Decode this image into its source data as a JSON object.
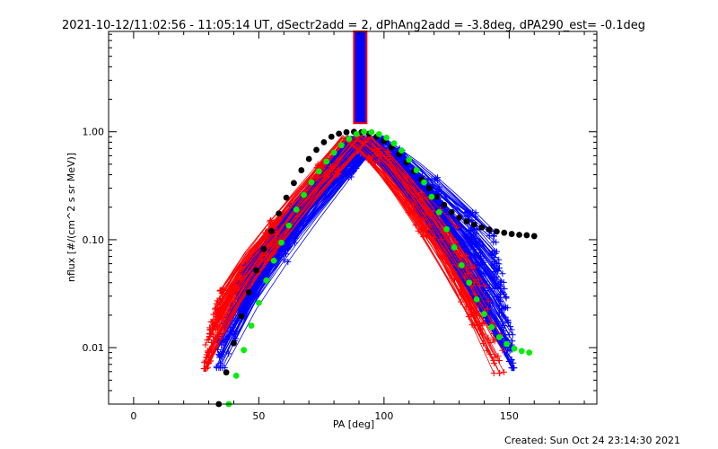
{
  "chart_data": {
    "type": "scatter",
    "title": "2021-10-12/11:02:56 - 11:05:14 UT, dSectr2add = 2, dPhAng2add = -3.8deg, dPA290_est= -0.1deg",
    "xlabel": "PA [deg]",
    "ylabel": "nflux [#/(cm^2 s sr MeV)]",
    "xlim": [
      -10,
      185
    ],
    "ylim": [
      0.003,
      8.5
    ],
    "yscale": "log",
    "xticks": [
      0,
      50,
      100,
      150
    ],
    "xtick_labels": [
      "0",
      "50",
      "100",
      "150"
    ],
    "yticks": [
      0.01,
      0.1,
      1.0
    ],
    "ytick_labels": [
      "0.01",
      "0.10",
      "1.00"
    ],
    "grid": false,
    "colors": {
      "red_traces": "#ff0000",
      "blue_traces": "#0000ff",
      "black_fit": "#000000",
      "green_fit": "#00ee00",
      "bar_fill": "#0000ff",
      "bar_edge": "#ff0000"
    },
    "series": [
      {
        "color": "#000000",
        "marker": "filled-circle",
        "x": [
          34,
          37,
          40,
          43,
          46,
          49,
          52,
          55,
          58,
          61,
          64,
          67,
          70,
          73,
          76,
          79,
          82,
          85,
          88,
          91,
          94,
          97,
          100,
          103,
          106,
          109,
          112,
          115,
          118,
          121,
          124,
          127,
          130,
          133,
          136,
          139,
          142,
          145,
          148,
          151,
          154,
          157,
          160
        ],
        "y": [
          0.003,
          0.0059,
          0.011,
          0.0195,
          0.0325,
          0.052,
          0.082,
          0.12,
          0.175,
          0.245,
          0.335,
          0.44,
          0.56,
          0.68,
          0.8,
          0.9,
          0.96,
          0.99,
          1.0,
          0.99,
          0.96,
          0.9,
          0.82,
          0.72,
          0.62,
          0.52,
          0.43,
          0.36,
          0.3,
          0.25,
          0.21,
          0.18,
          0.16,
          0.148,
          0.138,
          0.13,
          0.124,
          0.119,
          0.116,
          0.113,
          0.111,
          0.11,
          0.108
        ]
      },
      {
        "color": "#00ee00",
        "marker": "filled-circle",
        "x": [
          38,
          41,
          44,
          47,
          50,
          53,
          56,
          59,
          62,
          65,
          68,
          71,
          74,
          77,
          80,
          83,
          86,
          89,
          92,
          95,
          98,
          101,
          104,
          107,
          110,
          113,
          116,
          119,
          122,
          125,
          128,
          131,
          134,
          137,
          140,
          143,
          146,
          149,
          152,
          155,
          158
        ],
        "y": [
          0.003,
          0.0055,
          0.0095,
          0.016,
          0.026,
          0.042,
          0.064,
          0.094,
          0.135,
          0.19,
          0.26,
          0.34,
          0.43,
          0.53,
          0.64,
          0.75,
          0.86,
          0.95,
          1.0,
          0.99,
          0.95,
          0.88,
          0.78,
          0.67,
          0.55,
          0.44,
          0.34,
          0.25,
          0.18,
          0.125,
          0.085,
          0.058,
          0.04,
          0.028,
          0.0205,
          0.0155,
          0.0125,
          0.0108,
          0.0098,
          0.0093,
          0.009
        ]
      }
    ],
    "trace_bundles": [
      {
        "color": "#ff0000",
        "marker": "plus",
        "left_x_range": [
          28,
          36
        ],
        "left_y_range": [
          0.0064,
          0.034
        ],
        "peak_x_range": [
          83,
          95
        ],
        "peak_y_range": [
          0.82,
          0.93
        ],
        "right_x_range": [
          128,
          148
        ],
        "right_y_range": [
          0.0058,
          0.13
        ]
      },
      {
        "color": "#0000ff",
        "marker": "plus",
        "left_x_range": [
          33,
          48
        ],
        "left_y_range": [
          0.0065,
          0.058
        ],
        "peak_x_range": [
          85,
          100
        ],
        "peak_y_range": [
          0.8,
          0.93
        ],
        "right_x_range": [
          142,
          152
        ],
        "right_y_range": [
          0.0065,
          0.12
        ]
      }
    ],
    "marker_bar": {
      "x_range": [
        88,
        93
      ],
      "y_range": [
        1.2,
        8.5
      ]
    },
    "footer": "Created: Sun Oct 24 23:14:30 2021"
  }
}
